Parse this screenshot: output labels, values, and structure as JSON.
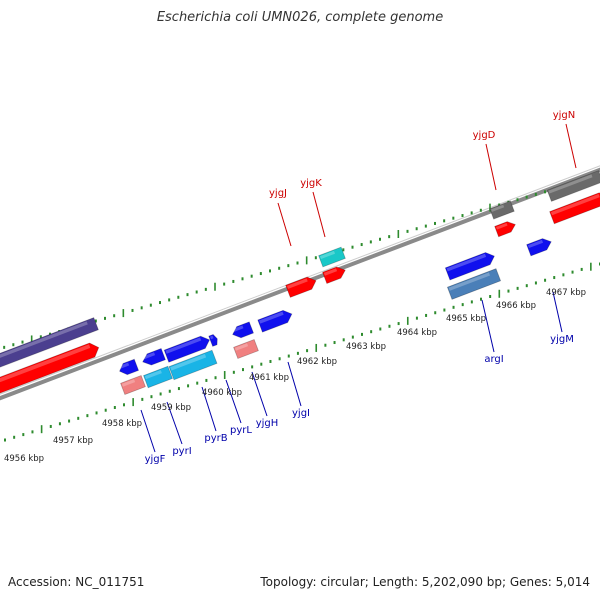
{
  "title": "Escherichia coli UMN026, complete genome",
  "footer": {
    "accession": "Accession: NC_011751",
    "summary": "Topology: circular; Length: 5,202,090 bp; Genes: 5,014"
  },
  "colors": {
    "backbone": "#8a8a8a",
    "tick": "#2e8b2e",
    "label_top": "#cc0000",
    "label_bottom": "#0000aa",
    "red": "#ff0000",
    "blue": "#1010ee",
    "cyan": "#19b4e6",
    "teal": "#19c8c8",
    "pink": "#f08080",
    "gray": "#6a6a6a",
    "steel": "#4a7fb8",
    "purple": "#4b3f8f"
  },
  "ruler_labels": [
    "4956 kbp",
    "4957 kbp",
    "4958 kbp",
    "4959 kbp",
    "4960 kbp",
    "4961 kbp",
    "4962 kbp",
    "4963 kbp",
    "4964 kbp",
    "4965 kbp",
    "4966 kbp",
    "4967 kbp"
  ],
  "top_genes": [
    "yjgJ",
    "yjgK",
    "yjgD",
    "yjgN"
  ],
  "bottom_genes": [
    "yjgF",
    "pyrI",
    "pyrB",
    "pyrL",
    "yjgH",
    "yjgI",
    "argI",
    "yjgM"
  ]
}
